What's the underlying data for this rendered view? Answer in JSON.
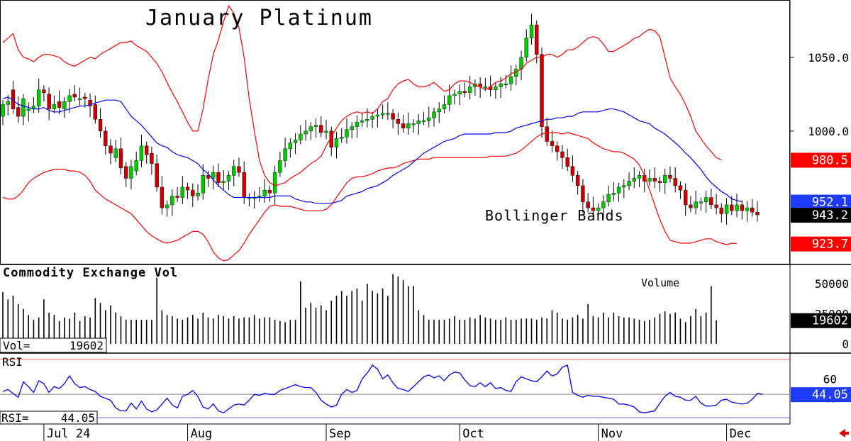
{
  "chart_data": [
    {
      "type": "candlestick",
      "title": "January Platinum",
      "annotation": "Bollinger Bands",
      "ylim": [
        912,
        1085
      ],
      "y_ticks": [
        "1050.0",
        "1000.0"
      ],
      "y_tick_values": [
        1050,
        1000
      ],
      "x_tick_labels": [
        "Jul 24",
        "Aug",
        "Sep",
        "Oct",
        "Nov",
        "Dec"
      ],
      "x_tick_index": [
        8,
        36,
        63,
        89,
        116,
        141
      ],
      "colors": {
        "up": "#00cc00",
        "down": "#cc0000",
        "ma": "#0000ff",
        "band": "#ff0000"
      },
      "price_tags": [
        {
          "label": "980.5",
          "value": 980.5,
          "color": "#ff0000"
        },
        {
          "label": "952.1",
          "value": 952.1,
          "color": "#1e3cff"
        },
        {
          "label": "943.2",
          "value": 943.2,
          "color": "#000000"
        },
        {
          "label": "923.7",
          "value": 923.7,
          "color": "#ff0000"
        }
      ],
      "series": [
        {
          "name": "Upper band",
          "values": [
            1060,
            1063,
            1066,
            1055,
            1050,
            1049,
            1047,
            1050,
            1052,
            1052,
            1051,
            1050,
            1047,
            1045,
            1044,
            1046,
            1048,
            1050,
            1049,
            1052,
            1054,
            1056,
            1058,
            1060,
            1060,
            1061,
            1058,
            1056,
            1054,
            1050,
            1046,
            1040,
            1033,
            1026,
            1020,
            1013,
            1006,
            1000,
            1000,
            1015,
            1035,
            1052,
            1062,
            1074,
            1085,
            1080,
            1070,
            1050,
            1022,
            1000,
            980,
            970,
            965,
            963,
            964,
            965,
            968,
            970,
            972,
            975,
            978,
            980,
            983,
            990,
            996,
            1002,
            1007,
            1010,
            1012,
            1013,
            1012,
            1013,
            1012,
            1015,
            1020,
            1022,
            1028,
            1032,
            1034,
            1035,
            1032,
            1030,
            1030,
            1031,
            1033,
            1030,
            1027,
            1028,
            1032,
            1034,
            1034,
            1033,
            1031,
            1030,
            1028,
            1030,
            1033,
            1034,
            1036,
            1039,
            1040,
            1042,
            1046,
            1048,
            1050,
            1050,
            1052,
            1052,
            1050,
            1052,
            1055,
            1055,
            1057,
            1060,
            1063,
            1064,
            1063,
            1059,
            1054,
            1054,
            1056,
            1058,
            1060,
            1063,
            1064,
            1067,
            1069,
            1068,
            1064,
            1050,
            1036,
            1030,
            1025,
            1018,
            1010,
            1000,
            995,
            990,
            986,
            982,
            980.5
          ]
        },
        {
          "name": "MA",
          "values": [
            1022,
            1023,
            1021,
            1018,
            1017,
            1016,
            1015,
            1015,
            1016,
            1014,
            1013,
            1013,
            1014,
            1015,
            1016,
            1017,
            1017,
            1018,
            1019,
            1020,
            1021,
            1021,
            1021,
            1020,
            1015,
            1010,
            1007,
            1004,
            1000,
            996,
            992,
            990,
            989,
            986,
            984,
            983,
            982,
            980,
            978,
            974,
            971,
            967,
            963,
            960,
            957,
            955,
            955,
            955,
            955,
            955,
            955,
            955,
            955,
            956,
            956,
            956,
            956,
            954,
            953,
            952,
            952,
            951,
            951,
            951,
            951,
            952,
            953,
            956,
            957,
            958,
            959,
            961,
            962,
            963,
            965,
            967,
            970,
            972,
            974,
            976,
            979,
            982,
            985,
            987,
            989,
            991,
            993,
            994,
            995,
            997,
            998,
            998,
            998,
            998,
            998,
            998,
            999,
            999,
            999,
            1000,
            1002,
            1003,
            1004,
            1005,
            1006,
            1007,
            1008,
            1008,
            1009,
            1009,
            1010,
            1010,
            1012,
            1013,
            1013,
            1013,
            1013,
            1014,
            1015,
            1015,
            1014,
            1013,
            1011,
            1009,
            1007,
            1006,
            1005,
            1002,
            1000,
            998,
            995,
            992,
            989,
            985,
            982,
            978,
            974,
            969,
            965,
            962,
            959,
            957,
            954,
            953,
            952.1
          ]
        },
        {
          "name": "Lower band",
          "values": [
            955,
            954,
            954,
            956,
            960,
            965,
            968,
            970,
            972,
            973,
            974,
            974,
            974,
            973,
            973,
            972,
            970,
            966,
            960,
            957,
            954,
            952,
            950,
            948,
            946,
            944,
            940,
            936,
            932,
            929,
            927,
            925,
            924,
            925,
            926,
            928,
            930,
            932,
            932,
            930,
            925,
            918,
            914,
            912,
            913,
            916,
            919,
            924,
            930,
            935,
            940,
            945,
            949,
            950,
            949,
            949,
            949,
            948,
            947,
            946,
            946,
            946,
            946,
            947,
            950,
            955,
            960,
            965,
            968,
            969,
            969,
            970,
            971,
            973,
            974,
            975,
            975,
            976,
            978,
            979,
            980,
            981,
            981,
            981,
            982,
            982,
            982,
            982,
            982,
            982,
            982,
            982,
            982,
            982,
            982,
            983,
            983,
            983,
            983,
            984,
            985,
            987,
            990,
            993,
            996,
            998,
            999,
            999,
            999,
            998,
            999,
            998,
            997,
            996,
            995,
            992,
            990,
            988,
            987,
            986,
            986,
            985,
            983,
            981,
            977,
            970,
            960,
            950,
            940,
            932,
            926,
            925,
            924,
            924,
            924,
            925,
            926,
            927,
            927,
            925,
            924,
            923,
            924,
            923.7
          ]
        },
        {
          "name": "Close",
          "values": [
            1018,
            1020,
            1015,
            1010,
            1022,
            1015,
            1017,
            1028,
            1026,
            1015,
            1018,
            1016,
            1020,
            1024,
            1023,
            1022,
            1022,
            1017,
            1008,
            1000,
            990,
            985,
            988,
            975,
            968,
            976,
            980,
            990,
            984,
            978,
            962,
            948,
            950,
            956,
            955,
            962,
            960,
            956,
            958,
            970,
            968,
            972,
            965,
            966,
            970,
            976,
            972,
            955,
            955,
            955,
            956,
            960,
            958,
            972,
            980,
            988,
            992,
            994,
            998,
            1000,
            1003,
            1004,
            999,
            1000,
            989,
            995,
            996,
            1001,
            1003,
            1006,
            1007,
            1008,
            1010,
            1011,
            1012,
            1012,
            1008,
            1005,
            1002,
            1005,
            1005,
            1007,
            1007,
            1009,
            1013,
            1015,
            1018,
            1024,
            1025,
            1027,
            1026,
            1030,
            1032,
            1030,
            1030,
            1028,
            1030,
            1032,
            1032,
            1037,
            1042,
            1050,
            1063,
            1072,
            1052,
            1003,
            993,
            990,
            986,
            982,
            976,
            970,
            963,
            952,
            948,
            946,
            948,
            952,
            957,
            958,
            962,
            963,
            966,
            968,
            970,
            966,
            968,
            966,
            965,
            970,
            968,
            963,
            960,
            950,
            948,
            952,
            952,
            955,
            950,
            948,
            944,
            950,
            946,
            950,
            946,
            948,
            945,
            943.2
          ]
        },
        {
          "name": "Open",
          "values": [
            1010,
            1018,
            1028,
            1016,
            1010,
            1014,
            1015,
            1017,
            1028,
            1025,
            1015,
            1020,
            1015,
            1020,
            1025,
            1022,
            1023,
            1021,
            1018,
            1008,
            1000,
            990,
            982,
            988,
            976,
            968,
            973,
            980,
            990,
            985,
            978,
            962,
            948,
            950,
            956,
            955,
            962,
            960,
            956,
            958,
            970,
            968,
            972,
            965,
            966,
            970,
            976,
            972,
            955,
            955,
            955,
            956,
            960,
            958,
            972,
            980,
            988,
            992,
            994,
            998,
            1000,
            1003,
            1004,
            999,
            1000,
            989,
            995,
            996,
            1001,
            1003,
            1006,
            1007,
            1008,
            1010,
            1011,
            1012,
            1012,
            1008,
            1005,
            1002,
            1005,
            1005,
            1007,
            1007,
            1009,
            1013,
            1015,
            1018,
            1024,
            1025,
            1027,
            1026,
            1030,
            1032,
            1030,
            1030,
            1028,
            1030,
            1032,
            1032,
            1037,
            1042,
            1050,
            1063,
            1072,
            1052,
            1003,
            993,
            990,
            986,
            982,
            976,
            970,
            963,
            952,
            948,
            946,
            948,
            952,
            957,
            958,
            962,
            963,
            966,
            968,
            970,
            966,
            968,
            966,
            965,
            970,
            968,
            963,
            960,
            950,
            948,
            952,
            952,
            955,
            950,
            948,
            944,
            950,
            946,
            950,
            946,
            948,
            945
          ]
        }
      ]
    },
    {
      "type": "bar",
      "title": "Commodity Exchange Vol",
      "legend": "Volume",
      "readout_label": "Vol=",
      "readout_value": "19602",
      "last_value_tag": "19602",
      "y_ticks": [
        "50000",
        "25000",
        "0"
      ],
      "y_tick_values": [
        50000,
        25000,
        0
      ],
      "ylim": [
        0,
        56000
      ],
      "values": [
        43000,
        37000,
        40000,
        33000,
        29000,
        24000,
        20000,
        22000,
        37000,
        26000,
        24000,
        19000,
        22000,
        21000,
        26000,
        19000,
        23000,
        22000,
        38000,
        34000,
        28000,
        32000,
        26000,
        23000,
        20000,
        20000,
        20000,
        20000,
        20000,
        20000,
        55000,
        28000,
        24000,
        23000,
        21000,
        20000,
        22000,
        24000,
        21000,
        26000,
        22000,
        21000,
        24000,
        23000,
        21000,
        23000,
        21000,
        22000,
        22000,
        24000,
        21000,
        22000,
        22000,
        20000,
        19000,
        18000,
        20000,
        20000,
        52000,
        30000,
        34000,
        30000,
        32000,
        28000,
        36000,
        40000,
        44000,
        40000,
        44000,
        46000,
        36000,
        50000,
        44000,
        42000,
        46000,
        40000,
        58000,
        56000,
        53000,
        48000,
        48000,
        28000,
        24000,
        20000,
        20000,
        20000,
        20000,
        21000,
        23000,
        20000,
        20000,
        22000,
        21000,
        24000,
        22000,
        21000,
        20000,
        20000,
        22000,
        20000,
        20000,
        21000,
        21000,
        21000,
        20000,
        22000,
        21000,
        28000,
        26000,
        21000,
        20000,
        22000,
        24000,
        21000,
        33000,
        23000,
        22000,
        26000,
        22000,
        26000,
        23000,
        22000,
        22000,
        21000,
        20000,
        19000,
        20000,
        22000,
        25000,
        27000,
        25000,
        26000,
        21000,
        18000,
        23000,
        29000,
        23000,
        26000,
        48000,
        19602
      ]
    },
    {
      "type": "line",
      "title": "RSI",
      "readout_label": "RSI=",
      "readout_value": "44.05",
      "last_value_tag": "44.05",
      "y_ticks": [
        "60",
        "40"
      ],
      "y_tick_values": [
        60,
        40
      ],
      "ylim": [
        15,
        85
      ],
      "reference_lines": [
        80,
        44.05,
        20
      ],
      "series": [
        {
          "name": "RSI",
          "values": [
            47,
            49,
            45,
            41,
            57,
            52,
            46,
            58,
            55,
            46,
            52,
            50,
            55,
            63,
            55,
            51,
            52,
            49,
            47,
            42,
            40,
            38,
            30,
            27,
            27,
            35,
            29,
            37,
            29,
            26,
            28,
            34,
            40,
            33,
            30,
            42,
            44,
            48,
            42,
            31,
            29,
            34,
            27,
            25,
            29,
            33,
            34,
            33,
            38,
            44,
            43,
            45,
            44,
            44,
            48,
            50,
            52,
            54,
            52,
            51,
            51,
            46,
            38,
            34,
            31,
            33,
            44,
            49,
            46,
            48,
            60,
            66,
            74,
            70,
            60,
            64,
            56,
            50,
            49,
            47,
            52,
            57,
            62,
            64,
            61,
            63,
            58,
            64,
            67,
            66,
            59,
            53,
            52,
            56,
            52,
            56,
            50,
            51,
            48,
            47,
            57,
            62,
            60,
            58,
            57,
            62,
            68,
            63,
            65,
            72,
            74,
            46,
            43,
            41,
            43,
            42,
            42,
            41,
            40,
            39,
            34,
            34,
            33,
            31,
            26,
            25,
            26,
            27,
            35,
            42,
            46,
            42,
            41,
            38,
            38,
            42,
            35,
            32,
            32,
            33,
            38,
            39,
            36,
            35,
            34,
            35,
            39,
            45,
            44.05
          ]
        }
      ]
    }
  ]
}
